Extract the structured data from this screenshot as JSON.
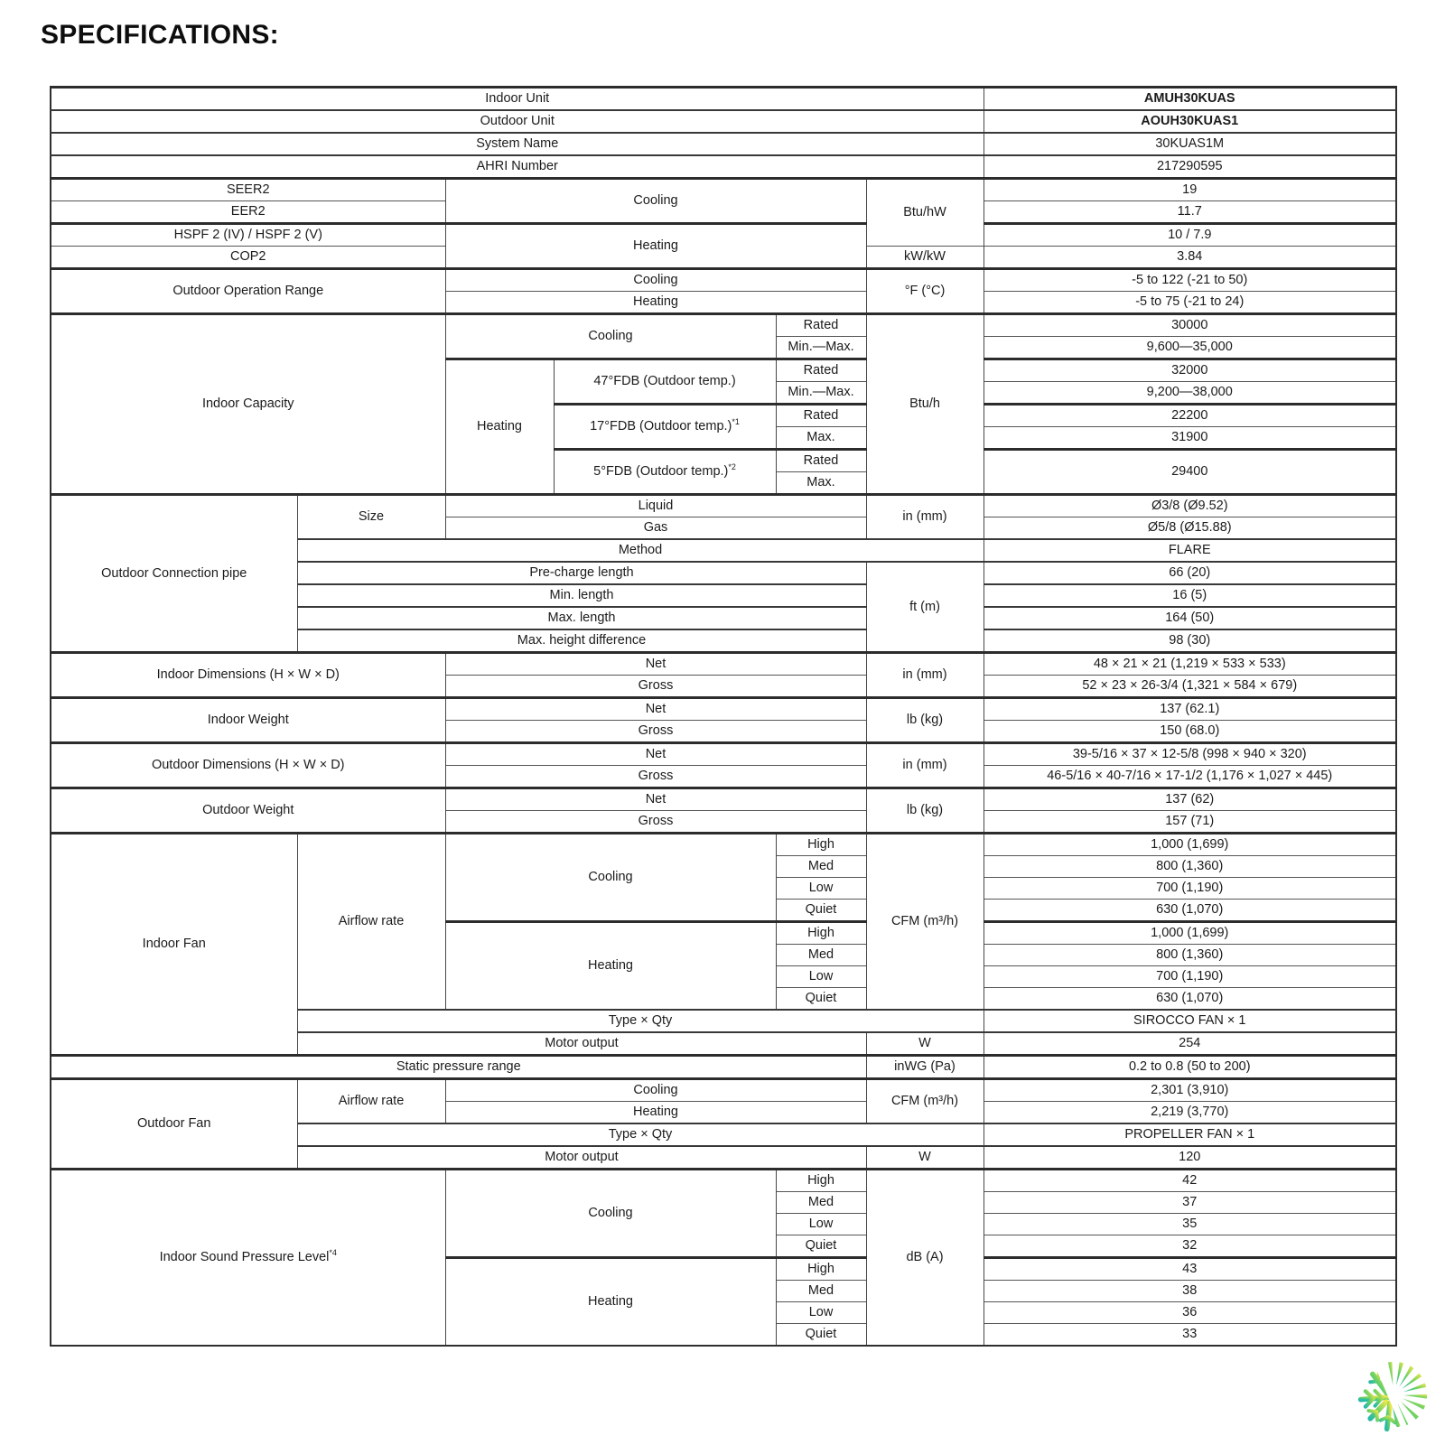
{
  "page": {
    "title": "SPECIFICATIONS:"
  },
  "logo": {
    "name": "half-snowflake-half-sun-logo",
    "colors": {
      "teal": "#29b9a8",
      "green": "#6fd262",
      "yellow": "#ece74b"
    }
  },
  "table": {
    "rows": [
      {
        "bt": 2,
        "cells": [
          {
            "t": "Indoor Unit",
            "cs": 6
          },
          {
            "t": "AMUH30KUAS",
            "b": 1,
            "name": "indoor-unit-model"
          }
        ]
      },
      {
        "cells": [
          {
            "t": "Outdoor Unit",
            "cs": 6
          },
          {
            "t": "AOUH30KUAS1",
            "b": 1,
            "name": "outdoor-unit-model"
          }
        ]
      },
      {
        "cells": [
          {
            "t": "System Name",
            "cs": 6
          },
          {
            "t": "30KUAS1M",
            "name": "system-name-value"
          }
        ]
      },
      {
        "cells": [
          {
            "t": "AHRI Number",
            "cs": 6
          },
          {
            "t": "217290595",
            "name": "ahri-number-value"
          }
        ]
      },
      {
        "bt": 2,
        "cells": [
          {
            "t": "SEER2",
            "cs": 2
          },
          {
            "t": "Cooling",
            "cs": 3,
            "rs": 2
          },
          {
            "t": "Btu/hW",
            "rs": 3
          },
          {
            "t": "19"
          }
        ]
      },
      {
        "bt": 0,
        "cells": [
          {
            "t": "EER2",
            "cs": 2
          },
          {
            "t": "11.7"
          }
        ]
      },
      {
        "bt": 2,
        "cells": [
          {
            "t": "HSPF 2 (IV) / HSPF 2 (V)",
            "cs": 2
          },
          {
            "t": "Heating",
            "cs": 3,
            "rs": 2
          },
          {
            "t": "10 / 7.9"
          }
        ]
      },
      {
        "bt": 0,
        "cells": [
          {
            "t": "COP2",
            "cs": 2
          },
          {
            "t": "kW/kW"
          },
          {
            "t": "3.84"
          }
        ]
      },
      {
        "bt": 2,
        "cells": [
          {
            "t": "Outdoor Operation Range",
            "cs": 2,
            "rs": 2
          },
          {
            "t": "Cooling",
            "cs": 3
          },
          {
            "t": "°F (°C)",
            "rs": 2
          },
          {
            "t": "-5 to 122 (-21 to 50)"
          }
        ]
      },
      {
        "bt": 0,
        "cells": [
          {
            "t": "Heating",
            "cs": 3
          },
          {
            "t": "-5 to 75 (-21 to 24)"
          }
        ]
      },
      {
        "bt": 2,
        "cells": [
          {
            "t": "Indoor Capacity",
            "cs": 2,
            "rs": 8
          },
          {
            "t": "Cooling",
            "cs": 2,
            "rs": 2
          },
          {
            "t": "Rated"
          },
          {
            "t": "Btu/h",
            "rs": 8
          },
          {
            "t": "30000"
          }
        ]
      },
      {
        "bt": 0,
        "cells": [
          {
            "t": "Min.—Max."
          },
          {
            "t": "9,600—35,000"
          }
        ]
      },
      {
        "bt": 2,
        "cells": [
          {
            "t": "Heating",
            "rs": 6
          },
          {
            "t": "47°FDB (Outdoor temp.)",
            "rs": 2
          },
          {
            "t": "Rated"
          },
          {
            "t": "32000"
          }
        ]
      },
      {
        "bt": 0,
        "cells": [
          {
            "t": "Min.—Max."
          },
          {
            "t": "9,200—38,000"
          }
        ]
      },
      {
        "bt": 2,
        "cells": [
          {
            "t": "17°FDB (Outdoor temp.)",
            "sup": "*1",
            "rs": 2
          },
          {
            "t": "Rated"
          },
          {
            "t": "22200"
          }
        ]
      },
      {
        "bt": 0,
        "cells": [
          {
            "t": "Max."
          },
          {
            "t": "31900"
          }
        ]
      },
      {
        "bt": 2,
        "cells": [
          {
            "t": "5°FDB (Outdoor temp.)",
            "sup": "*2",
            "rs": 2
          },
          {
            "t": "Rated"
          },
          {
            "t": "29400",
            "rs": 2
          }
        ]
      },
      {
        "bt": 0,
        "cells": [
          {
            "t": "Max."
          }
        ]
      },
      {
        "bt": 2,
        "cells": [
          {
            "t": "Outdoor Connection pipe",
            "rs": 7
          },
          {
            "t": "Size",
            "rs": 2
          },
          {
            "t": "Liquid",
            "cs": 3
          },
          {
            "t": "in (mm)",
            "rs": 2
          },
          {
            "t": "Ø3/8 (Ø9.52)"
          }
        ]
      },
      {
        "bt": 0,
        "cells": [
          {
            "t": "Gas",
            "cs": 3
          },
          {
            "t": "Ø5/8 (Ø15.88)"
          }
        ]
      },
      {
        "cells": [
          {
            "t": "Method",
            "cs": 5
          },
          {
            "t": "FLARE"
          }
        ]
      },
      {
        "cells": [
          {
            "t": "Pre-charge length",
            "cs": 4
          },
          {
            "t": "ft (m)",
            "rs": 4
          },
          {
            "t": "66 (20)"
          }
        ]
      },
      {
        "cells": [
          {
            "t": "Min. length",
            "cs": 4
          },
          {
            "t": "16 (5)"
          }
        ]
      },
      {
        "cells": [
          {
            "t": "Max. length",
            "cs": 4
          },
          {
            "t": "164 (50)"
          }
        ]
      },
      {
        "cells": [
          {
            "t": "Max. height difference",
            "cs": 4
          },
          {
            "t": "98 (30)"
          }
        ]
      },
      {
        "bt": 2,
        "cells": [
          {
            "t": "Indoor Dimensions (H × W × D)",
            "cs": 2,
            "rs": 2
          },
          {
            "t": "Net",
            "cs": 3
          },
          {
            "t": "in (mm)",
            "rs": 2
          },
          {
            "t": "48 × 21 × 21 (1,219 × 533 × 533)"
          }
        ]
      },
      {
        "bt": 0,
        "cells": [
          {
            "t": "Gross",
            "cs": 3
          },
          {
            "t": "52 × 23 × 26-3/4 (1,321 × 584 × 679)"
          }
        ]
      },
      {
        "bt": 2,
        "cells": [
          {
            "t": "Indoor Weight",
            "cs": 2,
            "rs": 2
          },
          {
            "t": "Net",
            "cs": 3
          },
          {
            "t": "lb (kg)",
            "rs": 2
          },
          {
            "t": "137 (62.1)"
          }
        ]
      },
      {
        "bt": 0,
        "cells": [
          {
            "t": "Gross",
            "cs": 3
          },
          {
            "t": "150 (68.0)"
          }
        ]
      },
      {
        "bt": 2,
        "cells": [
          {
            "t": "Outdoor Dimensions (H × W × D)",
            "cs": 2,
            "rs": 2
          },
          {
            "t": "Net",
            "cs": 3
          },
          {
            "t": "in (mm)",
            "rs": 2
          },
          {
            "t": "39-5/16 × 37 × 12-5/8 (998 × 940 × 320)"
          }
        ]
      },
      {
        "bt": 0,
        "cells": [
          {
            "t": "Gross",
            "cs": 3
          },
          {
            "t": "46-5/16 × 40-7/16 × 17-1/2 (1,176 × 1,027 × 445)"
          }
        ]
      },
      {
        "bt": 2,
        "cells": [
          {
            "t": "Outdoor Weight",
            "cs": 2,
            "rs": 2
          },
          {
            "t": "Net",
            "cs": 3
          },
          {
            "t": "lb (kg)",
            "rs": 2
          },
          {
            "t": "137 (62)"
          }
        ]
      },
      {
        "bt": 0,
        "cells": [
          {
            "t": "Gross",
            "cs": 3
          },
          {
            "t": "157 (71)"
          }
        ]
      },
      {
        "bt": 2,
        "cells": [
          {
            "t": "Indoor Fan",
            "rs": 10
          },
          {
            "t": "Airflow rate",
            "rs": 8
          },
          {
            "t": "Cooling",
            "cs": 2,
            "rs": 4
          },
          {
            "t": "High"
          },
          {
            "t": "CFM (m³/h)",
            "rs": 8
          },
          {
            "t": "1,000 (1,699)"
          }
        ]
      },
      {
        "bt": 0,
        "cells": [
          {
            "t": "Med"
          },
          {
            "t": "800 (1,360)"
          }
        ]
      },
      {
        "bt": 0,
        "cells": [
          {
            "t": "Low"
          },
          {
            "t": "700 (1,190)"
          }
        ]
      },
      {
        "bt": 0,
        "cells": [
          {
            "t": "Quiet"
          },
          {
            "t": "630 (1,070)"
          }
        ]
      },
      {
        "bt": 2,
        "cells": [
          {
            "t": "Heating",
            "cs": 2,
            "rs": 4
          },
          {
            "t": "High"
          },
          {
            "t": "1,000 (1,699)"
          }
        ]
      },
      {
        "bt": 0,
        "cells": [
          {
            "t": "Med"
          },
          {
            "t": "800 (1,360)"
          }
        ]
      },
      {
        "bt": 0,
        "cells": [
          {
            "t": "Low"
          },
          {
            "t": "700 (1,190)"
          }
        ]
      },
      {
        "bt": 0,
        "cells": [
          {
            "t": "Quiet"
          },
          {
            "t": "630 (1,070)"
          }
        ]
      },
      {
        "cells": [
          {
            "t": "Type × Qty",
            "cs": 5
          },
          {
            "t": "SIROCCO FAN × 1"
          }
        ]
      },
      {
        "cells": [
          {
            "t": "Motor output",
            "cs": 4
          },
          {
            "t": "W"
          },
          {
            "t": "254"
          }
        ]
      },
      {
        "bt": 2,
        "cells": [
          {
            "t": "Static pressure range",
            "cs": 5
          },
          {
            "t": "inWG (Pa)"
          },
          {
            "t": "0.2 to 0.8 (50 to 200)"
          }
        ]
      },
      {
        "bt": 2,
        "cells": [
          {
            "t": "Outdoor Fan",
            "rs": 4
          },
          {
            "t": "Airflow rate",
            "rs": 2
          },
          {
            "t": "Cooling",
            "cs": 3
          },
          {
            "t": "CFM (m³/h)",
            "rs": 2
          },
          {
            "t": "2,301 (3,910)"
          }
        ]
      },
      {
        "bt": 0,
        "cells": [
          {
            "t": "Heating",
            "cs": 3
          },
          {
            "t": "2,219 (3,770)"
          }
        ]
      },
      {
        "cells": [
          {
            "t": "Type × Qty",
            "cs": 5
          },
          {
            "t": "PROPELLER FAN × 1"
          }
        ]
      },
      {
        "cells": [
          {
            "t": "Motor output",
            "cs": 4
          },
          {
            "t": "W"
          },
          {
            "t": "120"
          }
        ]
      },
      {
        "bt": 2,
        "cells": [
          {
            "t": "Indoor Sound Pressure Level",
            "sup": "*4",
            "cs": 2,
            "rs": 8
          },
          {
            "t": "Cooling",
            "cs": 2,
            "rs": 4
          },
          {
            "t": "High"
          },
          {
            "t": "dB (A)",
            "rs": 8
          },
          {
            "t": "42"
          }
        ]
      },
      {
        "bt": 0,
        "cells": [
          {
            "t": "Med"
          },
          {
            "t": "37"
          }
        ]
      },
      {
        "bt": 0,
        "cells": [
          {
            "t": "Low"
          },
          {
            "t": "35"
          }
        ]
      },
      {
        "bt": 0,
        "cells": [
          {
            "t": "Quiet"
          },
          {
            "t": "32"
          }
        ]
      },
      {
        "bt": 2,
        "cells": [
          {
            "t": "Heating",
            "cs": 2,
            "rs": 4
          },
          {
            "t": "High"
          },
          {
            "t": "43"
          }
        ]
      },
      {
        "bt": 0,
        "cells": [
          {
            "t": "Med"
          },
          {
            "t": "38"
          }
        ]
      },
      {
        "bt": 0,
        "cells": [
          {
            "t": "Low"
          },
          {
            "t": "36"
          }
        ]
      },
      {
        "bt": 0,
        "cells": [
          {
            "t": "Quiet"
          },
          {
            "t": "33"
          }
        ]
      }
    ]
  }
}
